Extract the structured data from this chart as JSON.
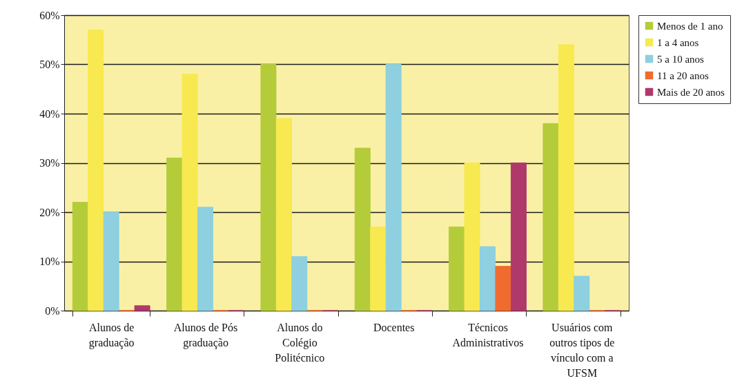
{
  "chart_data": {
    "type": "bar",
    "categories": [
      "Alunos de graduação",
      "Alunos de Pós graduação",
      "Alunos do Colégio Politécnico",
      "Docentes",
      "Técnicos Administrativos",
      "Usuários com outros tipos de vínculo com a UFSM"
    ],
    "series": [
      {
        "name": "Menos de 1 ano",
        "color": "#b5cc3a",
        "values": [
          22,
          31,
          50,
          33,
          17,
          38
        ]
      },
      {
        "name": "1 a 4 anos",
        "color": "#f7e94f",
        "values": [
          57,
          48,
          39,
          17,
          30,
          54
        ]
      },
      {
        "name": "5 a 10 anos",
        "color": "#8ecfe0",
        "values": [
          20,
          21,
          11,
          50,
          13,
          7
        ]
      },
      {
        "name": "11 a 20 anos",
        "color": "#ef6c2e",
        "values": [
          0,
          0,
          0,
          0,
          9,
          0
        ]
      },
      {
        "name": "Mais de 20 anos",
        "color": "#b0396b",
        "values": [
          1,
          0,
          0,
          0,
          30,
          0
        ]
      }
    ],
    "ylim": [
      0,
      60
    ],
    "yticks": [
      {
        "value": 0,
        "label": "0%"
      },
      {
        "value": 10,
        "label": "10%"
      },
      {
        "value": 20,
        "label": "20%"
      },
      {
        "value": 30,
        "label": "30%"
      },
      {
        "value": 40,
        "label": "40%"
      },
      {
        "value": 50,
        "label": "50%"
      },
      {
        "value": 60,
        "label": "60%"
      }
    ],
    "grid": "y",
    "legend": "right"
  }
}
